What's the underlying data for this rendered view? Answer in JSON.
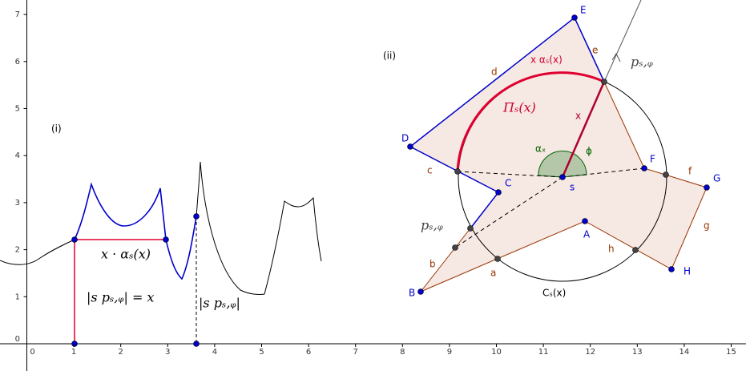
{
  "axes": {
    "xticks": [
      0,
      1,
      2,
      3,
      4,
      5,
      6,
      7,
      8,
      9,
      10,
      11,
      12,
      13,
      14,
      15
    ],
    "yticks": [
      0,
      1,
      2,
      3,
      4,
      5,
      6,
      7
    ]
  },
  "panel_i": {
    "label": "(i)",
    "product": "x · αₛ(x)",
    "distance_phi": "|s pₛ,ᵩ| = x",
    "distance_psi": "|s pₛ,ᵩ|"
  },
  "panel_ii": {
    "label": "(ii)",
    "arc_length": "x αₛ(x)",
    "arc_name": "Πₛ(x)",
    "radius": "x",
    "angle_alpha": "αₓ",
    "angle_phi": "ϕ",
    "ray_phi": "pₛ,ᵩ",
    "ray_psi": "pₛ,ᵩ",
    "center": "s",
    "circle": "Cₛ(x)",
    "vertices": [
      "A",
      "B",
      "C",
      "D",
      "E",
      "F",
      "G",
      "H"
    ],
    "edges": [
      "a",
      "b",
      "c",
      "d",
      "e",
      "f",
      "g",
      "h"
    ]
  }
}
